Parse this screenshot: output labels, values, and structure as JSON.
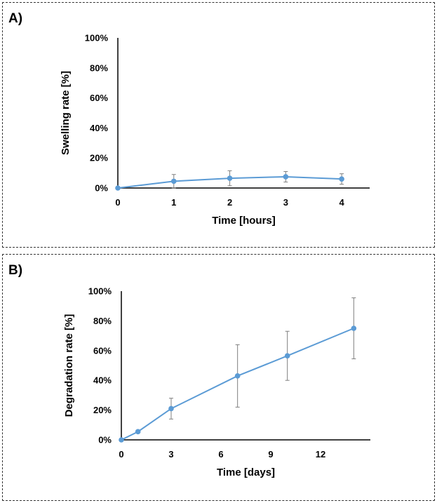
{
  "chart_data": [
    {
      "panel_label": "A)",
      "type": "line",
      "xlabel": "Time [hours]",
      "ylabel": "Swelling rate [%]",
      "xlim": [
        0,
        4.5
      ],
      "ylim": [
        0,
        100
      ],
      "x_ticks": [
        "0",
        "1",
        "2",
        "3",
        "4"
      ],
      "x_tick_values": [
        0,
        1,
        2,
        3,
        4
      ],
      "y_ticks": [
        "0%",
        "20%",
        "40%",
        "60%",
        "80%",
        "100%"
      ],
      "y_tick_values": [
        0,
        20,
        40,
        60,
        80,
        100
      ],
      "grid": false,
      "color": "#5b9bd5",
      "series": [
        {
          "x": [
            0,
            1,
            2,
            3,
            4
          ],
          "values": [
            0,
            4.5,
            6.5,
            7.5,
            6
          ],
          "error": [
            0,
            4.5,
            5,
            3.5,
            3.5
          ]
        }
      ]
    },
    {
      "panel_label": "B)",
      "type": "line",
      "xlabel": "Time [days]",
      "ylabel": "Degradation rate [%]",
      "xlim": [
        0,
        15
      ],
      "ylim": [
        0,
        100
      ],
      "x_ticks": [
        "0",
        "3",
        "6",
        "9",
        "12"
      ],
      "x_tick_values": [
        0,
        3,
        6,
        9,
        12
      ],
      "y_ticks": [
        "0%",
        "20%",
        "40%",
        "60%",
        "80%",
        "100%"
      ],
      "y_tick_values": [
        0,
        20,
        40,
        60,
        80,
        100
      ],
      "grid": false,
      "color": "#5b9bd5",
      "series": [
        {
          "x": [
            0,
            1,
            3,
            7,
            10,
            14
          ],
          "values": [
            0,
            5.5,
            21,
            43,
            56.5,
            75
          ],
          "error": [
            0,
            0,
            7,
            21,
            16.5,
            20.5
          ]
        }
      ]
    }
  ]
}
